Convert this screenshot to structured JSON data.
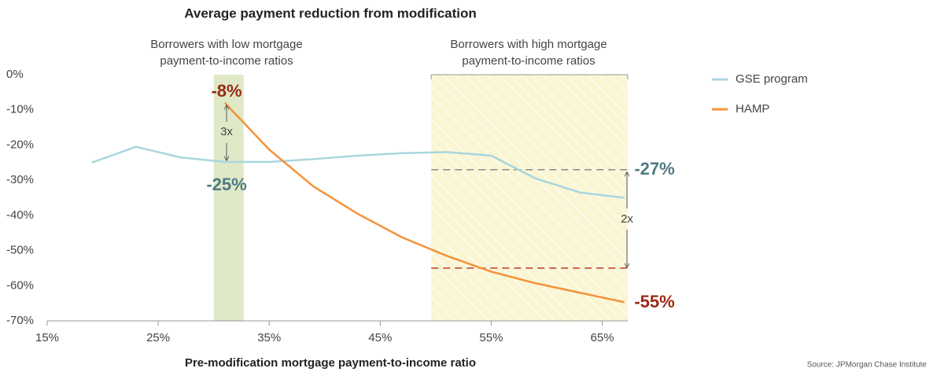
{
  "chart_data": {
    "type": "line",
    "title": "Average payment reduction from modification",
    "x_label": "Pre-modification mortgage payment-to-income ratio",
    "source": "Source: JPMorgan Chase Institute",
    "xlim": [
      15,
      67.3
    ],
    "ylim": [
      -70,
      0
    ],
    "xticks": [
      {
        "value": 15,
        "label": "15%"
      },
      {
        "value": 25,
        "label": "25%"
      },
      {
        "value": 35,
        "label": "35%"
      },
      {
        "value": 45,
        "label": "45%"
      },
      {
        "value": 55,
        "label": "55%"
      },
      {
        "value": 65,
        "label": "65%"
      }
    ],
    "yticks": [
      {
        "value": 0,
        "label": "0%"
      },
      {
        "value": -10,
        "label": "-10%"
      },
      {
        "value": -20,
        "label": "-20%"
      },
      {
        "value": -30,
        "label": "-30%"
      },
      {
        "value": -40,
        "label": "-40%"
      },
      {
        "value": -50,
        "label": "-50%"
      },
      {
        "value": -60,
        "label": "-60%"
      },
      {
        "value": -70,
        "label": "-70%"
      }
    ],
    "grid": false,
    "x": [
      19,
      23,
      27,
      31,
      35,
      39,
      43,
      47,
      51,
      55,
      59,
      63,
      67
    ],
    "series": [
      {
        "name": "GSE program",
        "color": "#a9d6de",
        "values": [
          -25,
          -20.5,
          -23.5,
          -24.8,
          -24.8,
          -24,
          -23,
          -22.3,
          -22,
          -23,
          -29.5,
          -33.5,
          -35
        ]
      },
      {
        "name": "HAMP",
        "color": "#f5923a",
        "values": [
          null,
          null,
          null,
          -8,
          -21.3,
          -31.8,
          -39.6,
          -46.3,
          -51.5,
          -56,
          -59.3,
          -62,
          -64.7
        ]
      }
    ],
    "bands": [
      {
        "from": 30,
        "to": 32.7,
        "color": "#dfe9c8",
        "label": [
          "Borrowers with low mortgage",
          "payment-to-income ratios"
        ]
      },
      {
        "from": 49.6,
        "to": 67.3,
        "color": "#faf5d2",
        "label": [
          "Borrowers with high mortgage",
          "payment-to-income ratios"
        ]
      }
    ],
    "reference_lines": [
      {
        "value": -27,
        "color": "#8a8a8a"
      },
      {
        "value": -55,
        "color": "#c0392b"
      }
    ],
    "annotations": [
      "-8%",
      "-25%",
      "-27%",
      "-55%",
      "3x",
      "2x"
    ]
  }
}
